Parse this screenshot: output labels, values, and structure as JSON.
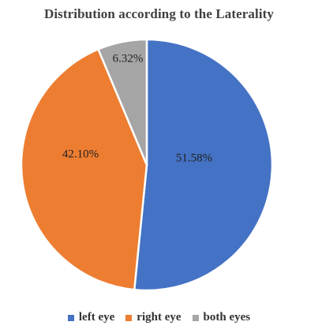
{
  "chart_data": {
    "type": "pie",
    "title": "Distribution according to the Laterality",
    "slices": [
      {
        "name": "left eye",
        "value": 51.58,
        "label": "51.58%",
        "color": "#4472C4"
      },
      {
        "name": "right eye",
        "value": 42.1,
        "label": "42.10%",
        "color": "#ED7D31"
      },
      {
        "name": "both eyes",
        "value": 6.32,
        "label": "6.32%",
        "color": "#A5A5A5"
      }
    ],
    "start_angle_deg": 0,
    "direction": "clockwise",
    "legend_position": "bottom"
  }
}
